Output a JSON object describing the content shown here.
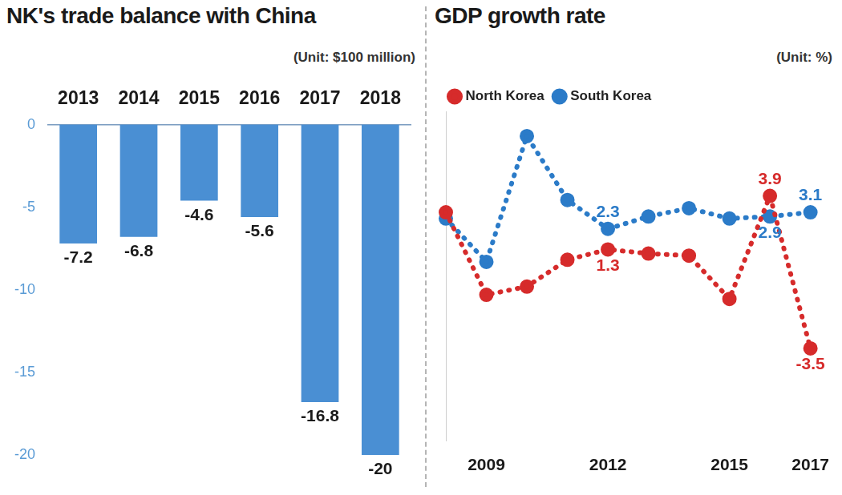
{
  "chart_data": [
    {
      "type": "bar",
      "title": "NK's trade balance with China",
      "subtitle": "(Unit: $100 million)",
      "categories": [
        "2013",
        "2014",
        "2015",
        "2016",
        "2017",
        "2018"
      ],
      "values": [
        -7.2,
        -6.8,
        -4.6,
        -5.6,
        -16.8,
        -20
      ],
      "color": "#4a8fd3",
      "ylim": [
        -20,
        0
      ],
      "yticks": [
        -20,
        -15,
        -10,
        -5,
        0
      ],
      "grid": false,
      "data_labels": true
    },
    {
      "type": "line",
      "title": "GDP growth rate",
      "subtitle": "(Unit: %)",
      "categories": [
        null,
        "2009",
        null,
        null,
        "2012",
        null,
        null,
        "2015",
        null,
        "2017"
      ],
      "series": [
        {
          "name": "North Korea",
          "color": "#d62b2b",
          "values": [
            3.1,
            -0.9,
            -0.5,
            0.8,
            1.3,
            1.1,
            1.0,
            -1.1,
            3.9,
            -3.5
          ],
          "value_labels": [
            null,
            null,
            null,
            null,
            "1.3",
            null,
            null,
            null,
            "3.9",
            "-3.5"
          ]
        },
        {
          "name": "South Korea",
          "color": "#2b7bc8",
          "values": [
            2.8,
            0.7,
            6.8,
            3.7,
            2.3,
            2.9,
            3.3,
            2.8,
            2.9,
            3.1
          ],
          "value_labels": [
            null,
            null,
            null,
            null,
            "2.3",
            null,
            null,
            null,
            "2.9",
            "3.1"
          ]
        }
      ],
      "ylim": [
        -8,
        8
      ],
      "grid": false,
      "legend": "top-left",
      "tick_labels": "x",
      "data_labels": true,
      "marker": "circle",
      "line_style": "dotted"
    }
  ]
}
